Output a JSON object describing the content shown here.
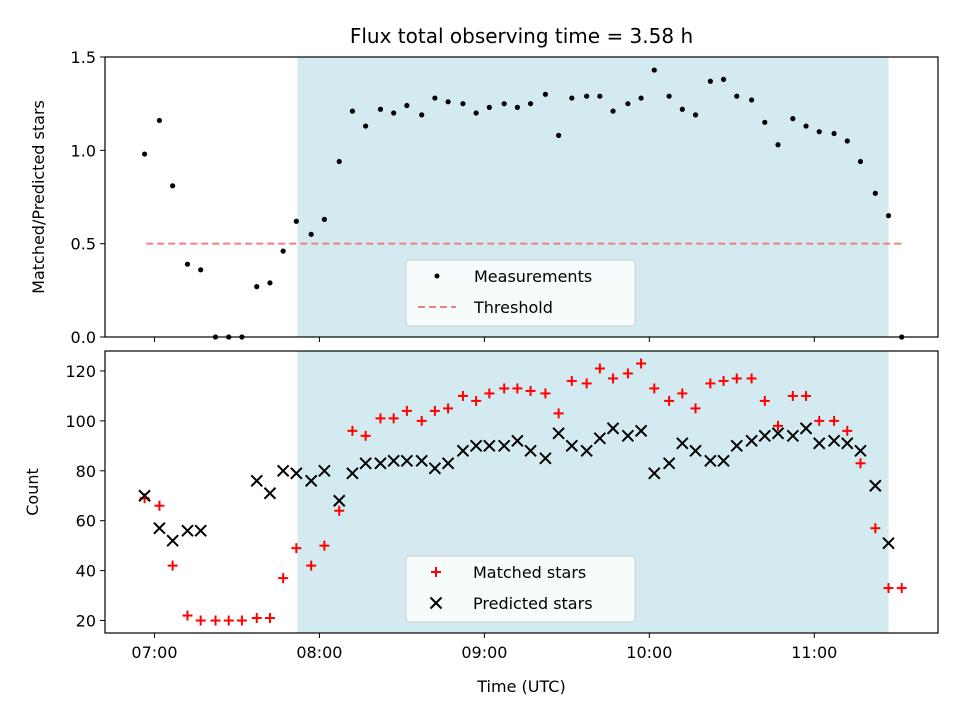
{
  "chart_data": [
    {
      "type": "scatter",
      "title": "Flux total observing time = 3.58 h",
      "xlabel": "",
      "ylabel": "Matched/Predicted stars",
      "ylim": [
        0,
        1.5
      ],
      "yticks": [
        "0.0",
        "0.5",
        "1.0",
        "1.5"
      ],
      "xlim_hours": [
        6.7,
        11.75
      ],
      "shaded_region": {
        "start": "07:52",
        "end": "11:27",
        "color": "#d3eaf0"
      },
      "threshold": {
        "value": 0.5,
        "from": "06:57",
        "to": "11:33",
        "color": "#f08080",
        "style": "dashed"
      },
      "legend": {
        "placement": "bottom-center",
        "entries": [
          "Measurements",
          "Threshold"
        ]
      },
      "series": [
        {
          "name": "Measurements",
          "marker": "dot",
          "color": "#000000",
          "x": [
            6.94,
            7.03,
            7.11,
            7.2,
            7.28,
            7.37,
            7.45,
            7.53,
            7.62,
            7.7,
            7.78,
            7.86,
            7.95,
            8.03,
            8.12,
            8.2,
            8.28,
            8.37,
            8.45,
            8.53,
            8.62,
            8.7,
            8.78,
            8.87,
            8.95,
            9.03,
            9.12,
            9.2,
            9.28,
            9.37,
            9.45,
            9.53,
            9.62,
            9.7,
            9.78,
            9.87,
            9.95,
            10.03,
            10.12,
            10.2,
            10.28,
            10.37,
            10.45,
            10.53,
            10.62,
            10.7,
            10.78,
            10.87,
            10.95,
            11.03,
            11.12,
            11.2,
            11.28,
            11.37,
            11.45,
            11.53
          ],
          "y": [
            0.98,
            1.16,
            0.81,
            0.39,
            0.36,
            0.0,
            0.0,
            0.0,
            0.27,
            0.29,
            0.46,
            0.62,
            0.55,
            0.63,
            0.94,
            1.21,
            1.13,
            1.22,
            1.2,
            1.24,
            1.19,
            1.28,
            1.26,
            1.25,
            1.2,
            1.23,
            1.25,
            1.23,
            1.25,
            1.3,
            1.08,
            1.28,
            1.29,
            1.29,
            1.21,
            1.25,
            1.28,
            1.43,
            1.29,
            1.22,
            1.19,
            1.37,
            1.38,
            1.29,
            1.27,
            1.15,
            1.03,
            1.17,
            1.13,
            1.1,
            1.09,
            1.05,
            0.94,
            0.77,
            0.65,
            0.0
          ]
        }
      ]
    },
    {
      "type": "scatter",
      "title": "",
      "xlabel": "Time (UTC)",
      "ylabel": "Count",
      "ylim": [
        15,
        128
      ],
      "yticks": [
        "20",
        "40",
        "60",
        "80",
        "100",
        "120"
      ],
      "xticks": [
        "07:00",
        "08:00",
        "09:00",
        "10:00",
        "11:00"
      ],
      "xlim_hours": [
        6.7,
        11.75
      ],
      "shaded_region": {
        "start": "07:52",
        "end": "11:27",
        "color": "#d3eaf0"
      },
      "legend": {
        "placement": "bottom-center",
        "entries": [
          "Matched stars",
          "Predicted stars"
        ]
      },
      "series": [
        {
          "name": "Matched stars",
          "marker": "plus",
          "color": "#ff0000",
          "x": [
            6.94,
            7.03,
            7.11,
            7.2,
            7.28,
            7.37,
            7.45,
            7.53,
            7.62,
            7.7,
            7.78,
            7.86,
            7.95,
            8.03,
            8.12,
            8.2,
            8.28,
            8.37,
            8.45,
            8.53,
            8.62,
            8.7,
            8.78,
            8.87,
            8.95,
            9.03,
            9.12,
            9.2,
            9.28,
            9.37,
            9.45,
            9.53,
            9.62,
            9.7,
            9.78,
            9.87,
            9.95,
            10.03,
            10.12,
            10.2,
            10.28,
            10.37,
            10.45,
            10.53,
            10.62,
            10.7,
            10.78,
            10.87,
            10.95,
            11.03,
            11.12,
            11.2,
            11.28,
            11.37,
            11.45,
            11.53
          ],
          "y": [
            69,
            66,
            42,
            22,
            20,
            20,
            20,
            20,
            21,
            21,
            37,
            49,
            42,
            50,
            64,
            96,
            94,
            101,
            101,
            104,
            100,
            104,
            105,
            110,
            108,
            111,
            113,
            113,
            112,
            111,
            103,
            116,
            115,
            121,
            117,
            119,
            123,
            113,
            108,
            111,
            105,
            115,
            116,
            117,
            117,
            108,
            98,
            110,
            110,
            100,
            100,
            96,
            83,
            57,
            33,
            33
          ]
        },
        {
          "name": "Predicted stars",
          "marker": "x",
          "color": "#000000",
          "x": [
            6.94,
            7.03,
            7.11,
            7.2,
            7.28,
            7.62,
            7.7,
            7.78,
            7.86,
            7.95,
            8.03,
            8.12,
            8.2,
            8.28,
            8.37,
            8.45,
            8.53,
            8.62,
            8.7,
            8.78,
            8.87,
            8.95,
            9.03,
            9.12,
            9.2,
            9.28,
            9.37,
            9.45,
            9.53,
            9.62,
            9.7,
            9.78,
            9.87,
            9.95,
            10.03,
            10.12,
            10.2,
            10.28,
            10.37,
            10.45,
            10.53,
            10.62,
            10.7,
            10.78,
            10.87,
            10.95,
            11.03,
            11.12,
            11.2,
            11.28,
            11.37,
            11.45
          ],
          "y": [
            70,
            57,
            52,
            56,
            56,
            76,
            71,
            80,
            79,
            76,
            80,
            68,
            79,
            83,
            83,
            84,
            84,
            84,
            81,
            83,
            88,
            90,
            90,
            90,
            92,
            88,
            85,
            95,
            90,
            88,
            93,
            97,
            94,
            96,
            79,
            83,
            91,
            88,
            84,
            84,
            90,
            92,
            94,
            95,
            94,
            97,
            91,
            92,
            91,
            88,
            74,
            51
          ]
        }
      ]
    }
  ]
}
